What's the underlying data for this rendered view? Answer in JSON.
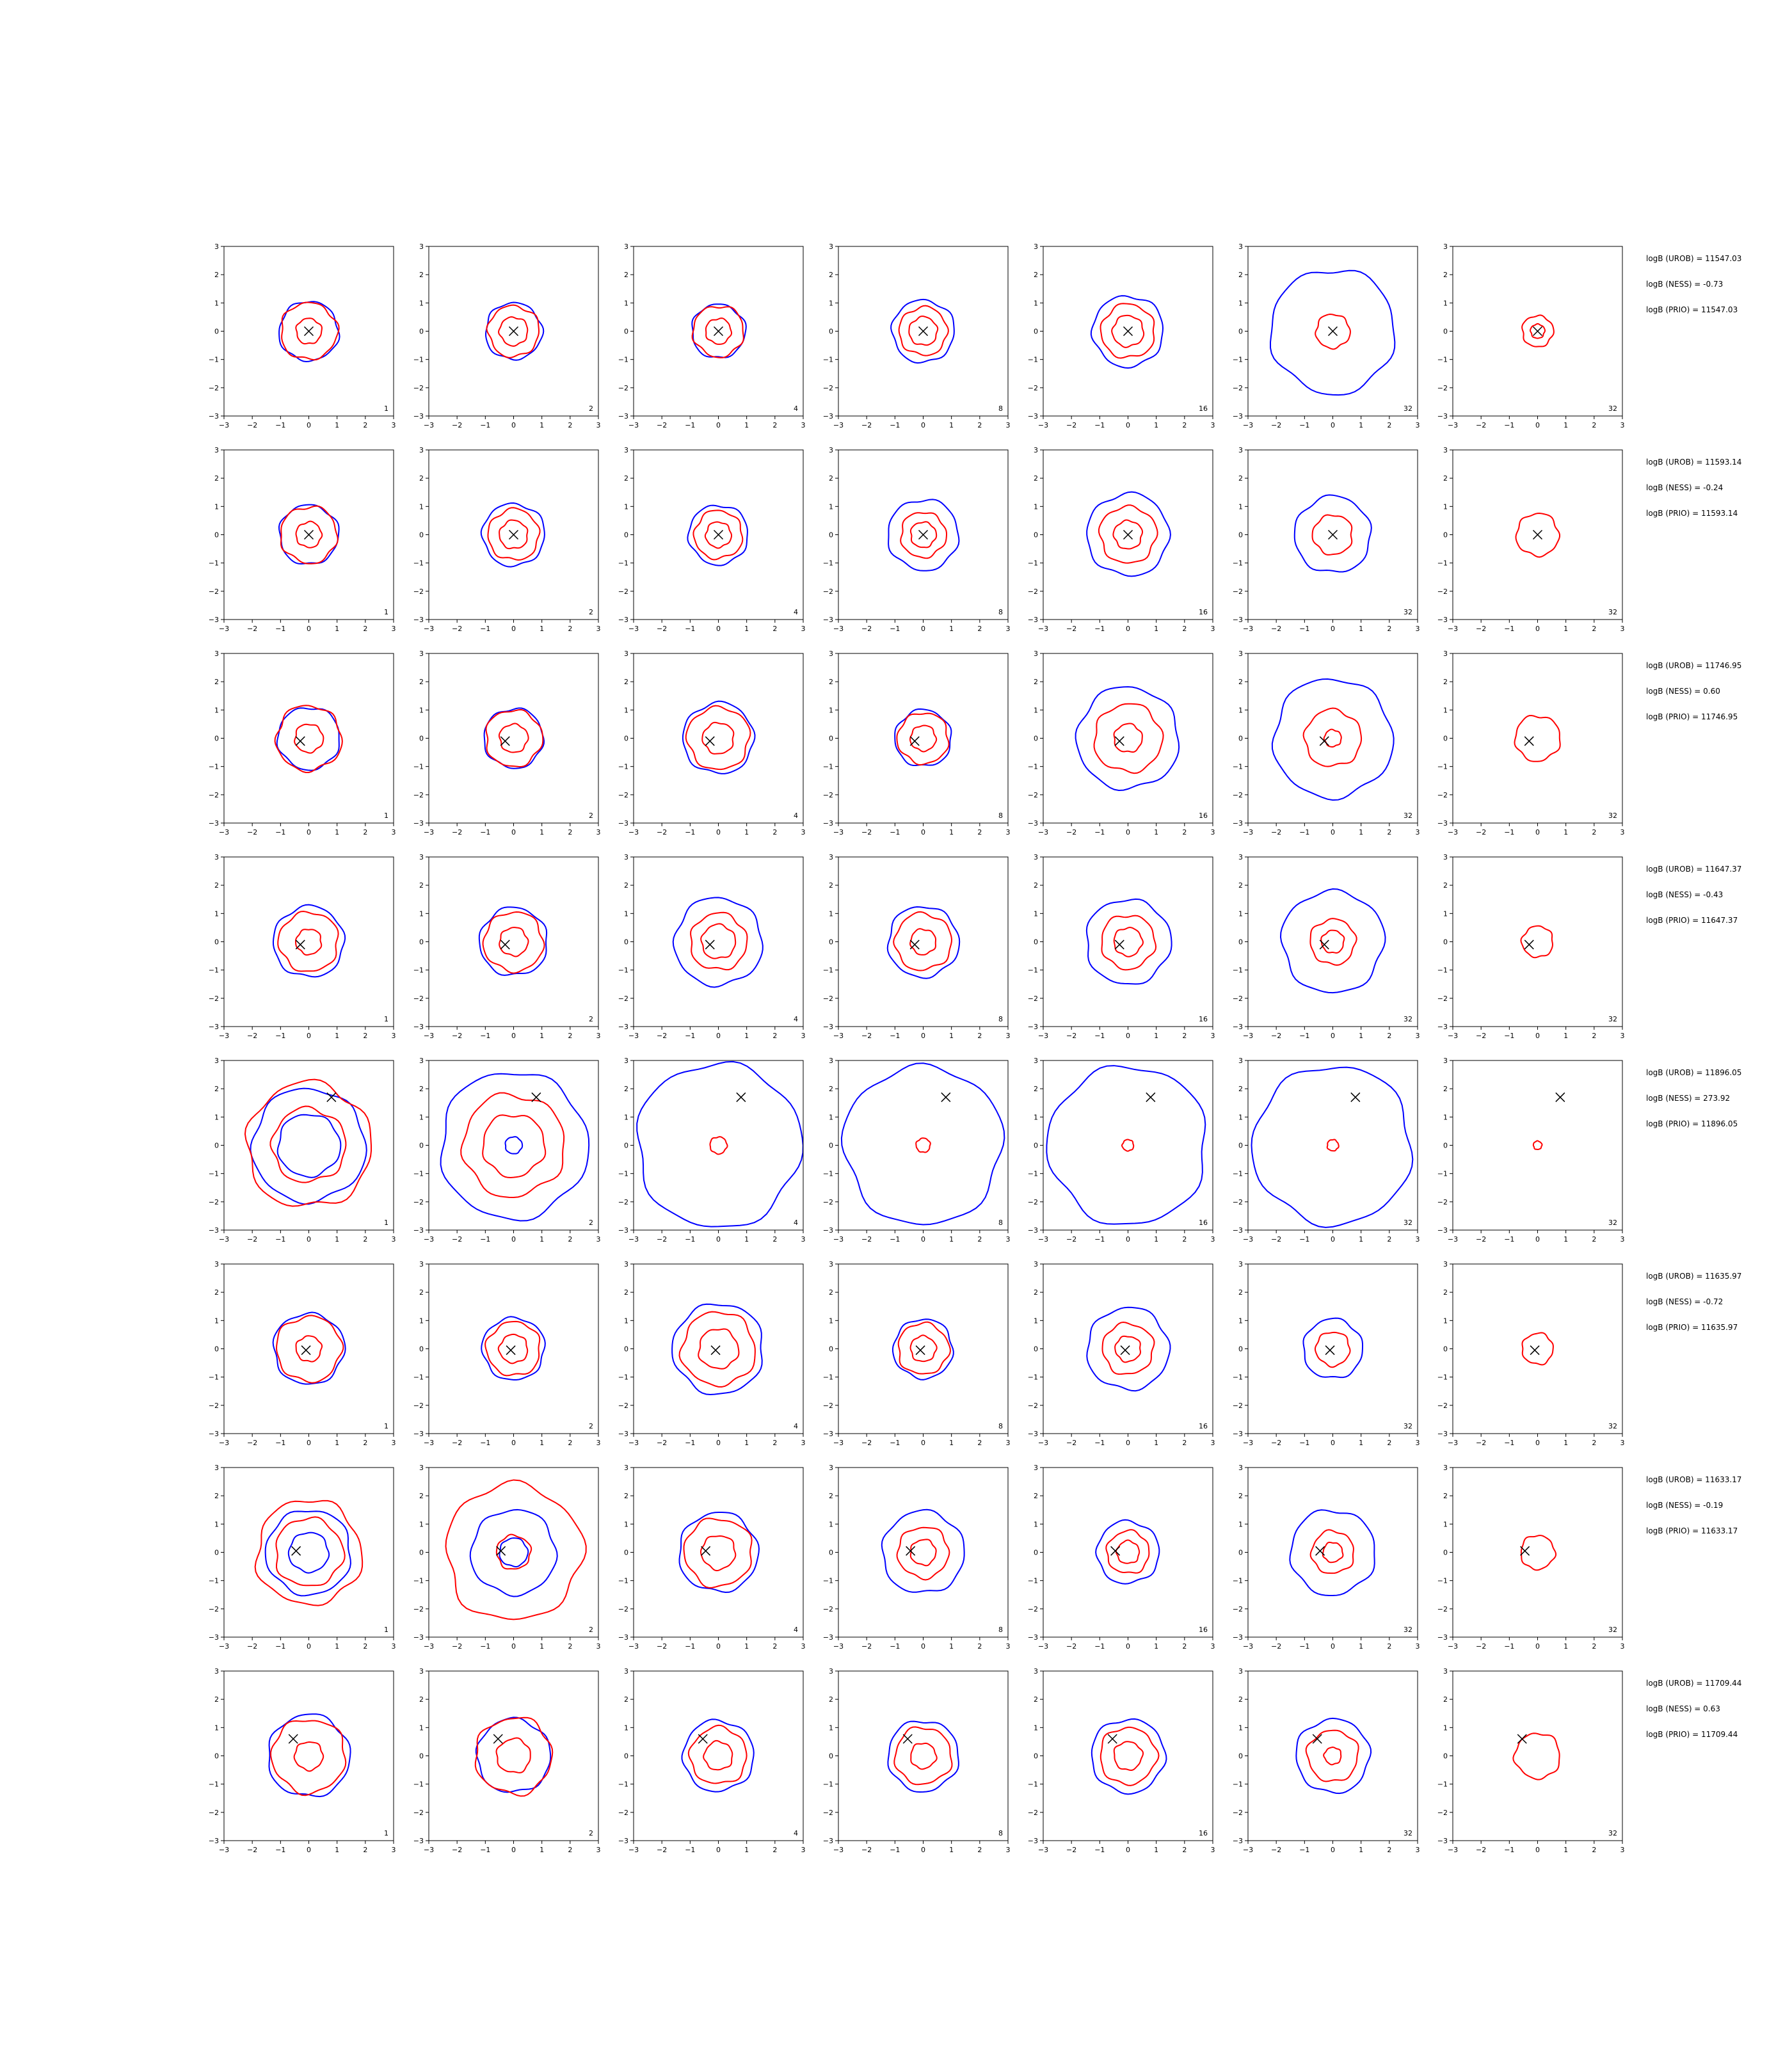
{
  "chart_data": {
    "type": "contour-grid",
    "rows": 8,
    "cols": 7,
    "xlim": [
      -3,
      3
    ],
    "ylim": [
      -3,
      3
    ],
    "ticks": [
      "−3",
      "−2",
      "−1",
      "0",
      "1",
      "2",
      "3"
    ],
    "tick_values": [
      -3,
      -2,
      -1,
      0,
      1,
      2,
      3
    ],
    "panel_labels": [
      "1",
      "2",
      "4",
      "8",
      "16",
      "32",
      "32"
    ],
    "colors": {
      "blue": "#0000ff",
      "red": "#ff0000",
      "marker": "#000000"
    },
    "row_data": [
      {
        "marker": [
          0.0,
          0.0
        ],
        "blue_radii": [
          [
            1.05
          ],
          [
            1.0
          ],
          [
            0.95
          ],
          [
            1.1
          ],
          [
            1.25
          ],
          [
            2.2
          ],
          []
        ],
        "red_radii": [
          [
            1.0,
            0.45
          ],
          [
            0.9,
            0.5
          ],
          [
            0.9,
            0.45
          ],
          [
            0.85,
            0.5
          ],
          [
            0.95,
            0.55
          ],
          [
            0.6
          ],
          [
            0.55,
            0.25
          ]
        ],
        "annotations": [
          "logB (UROB) = 11547.03",
          "logB (NESS) = -0.73",
          "logB (PRIO) = 11547.03"
        ]
      },
      {
        "marker": [
          0.0,
          0.0
        ],
        "blue_radii": [
          [
            1.05
          ],
          [
            1.1
          ],
          [
            1.05
          ],
          [
            1.25
          ],
          [
            1.45
          ],
          [
            1.35
          ],
          []
        ],
        "red_radii": [
          [
            1.0,
            0.45
          ],
          [
            0.9,
            0.5
          ],
          [
            0.85,
            0.45
          ],
          [
            0.8,
            0.45
          ],
          [
            1.0,
            0.5
          ],
          [
            0.7
          ],
          [
            0.75
          ]
        ],
        "annotations": [
          "logB (UROB) = 11593.14",
          "logB (NESS) = -0.24",
          "logB (PRIO) = 11593.14"
        ]
      },
      {
        "marker": [
          -0.3,
          -0.1
        ],
        "blue_radii": [
          [
            1.1
          ],
          [
            1.05
          ],
          [
            1.25
          ],
          [
            1.0
          ],
          [
            1.8
          ],
          [
            2.1
          ],
          []
        ],
        "red_radii": [
          [
            1.15,
            0.5
          ],
          [
            1.0,
            0.5
          ],
          [
            1.1,
            0.55
          ],
          [
            0.9,
            0.45
          ],
          [
            1.2,
            0.5
          ],
          [
            1.0,
            0.3
          ],
          [
            0.8
          ]
        ],
        "annotations": [
          "logB (UROB) = 11746.95",
          "logB (NESS) = 0.60",
          "logB (PRIO) = 11746.95"
        ]
      },
      {
        "marker": [
          -0.3,
          -0.1
        ],
        "blue_radii": [
          [
            1.25
          ],
          [
            1.2
          ],
          [
            1.55
          ],
          [
            1.25
          ],
          [
            1.5
          ],
          [
            1.8
          ],
          []
        ],
        "red_radii": [
          [
            1.05,
            0.45
          ],
          [
            1.05,
            0.5
          ],
          [
            1.0,
            0.6
          ],
          [
            1.0,
            0.45
          ],
          [
            0.95,
            0.5
          ],
          [
            0.8,
            0.4
          ],
          [
            0.55
          ]
        ],
        "annotations": [
          "logB (UROB) = 11647.37",
          "logB (NESS) = -0.43",
          "logB (PRIO) = 11647.37"
        ]
      },
      {
        "marker": [
          0.8,
          1.7
        ],
        "blue_radii": [
          [
            2.0,
            1.1
          ],
          [
            2.6,
            0.3
          ],
          [
            2.9
          ],
          [
            2.8
          ],
          [
            2.8
          ],
          [
            2.8
          ],
          []
        ],
        "red_radii": [
          [
            2.2,
            1.3
          ],
          [
            1.8,
            1.1
          ],
          [
            0.3
          ],
          [
            0.25
          ],
          [
            0.2
          ],
          [
            0.2
          ],
          [
            0.15
          ]
        ],
        "annotations": [
          "logB (UROB) = 11896.05",
          "logB (NESS) = 273.92",
          "logB (PRIO) = 11896.05"
        ]
      },
      {
        "marker": [
          -0.1,
          -0.05
        ],
        "blue_radii": [
          [
            1.25
          ],
          [
            1.1
          ],
          [
            1.6
          ],
          [
            1.05
          ],
          [
            1.45
          ],
          [
            1.05
          ],
          []
        ],
        "red_radii": [
          [
            1.15,
            0.45
          ],
          [
            0.95,
            0.5
          ],
          [
            1.3,
            0.7
          ],
          [
            0.9,
            0.45
          ],
          [
            0.9,
            0.45
          ],
          [
            0.6
          ],
          [
            0.55
          ]
        ],
        "annotations": [
          "logB (UROB) = 11635.97",
          "logB (NESS) = -0.72",
          "logB (PRIO) = 11635.97"
        ]
      },
      {
        "marker": [
          -0.45,
          0.05
        ],
        "blue_radii": [
          [
            1.5,
            0.7
          ],
          [
            1.5,
            0.5
          ],
          [
            1.4
          ],
          [
            1.45
          ],
          [
            1.1
          ],
          [
            1.5
          ],
          []
        ],
        "red_radii": [
          [
            1.85,
            1.2
          ],
          [
            2.4,
            0.6
          ],
          [
            1.2,
            0.6
          ],
          [
            0.9,
            0.45
          ],
          [
            0.75,
            0.4
          ],
          [
            0.75,
            0.35
          ],
          [
            0.6
          ]
        ],
        "annotations": [
          "logB (UROB) = 11633.17",
          "logB (NESS) = -0.19",
          "logB (PRIO) = 11633.17"
        ]
      },
      {
        "marker": [
          -0.55,
          0.6
        ],
        "blue_radii": [
          [
            1.45
          ],
          [
            1.3
          ],
          [
            1.25
          ],
          [
            1.25
          ],
          [
            1.3
          ],
          [
            1.3
          ],
          []
        ],
        "red_radii": [
          [
            1.3,
            0.5
          ],
          [
            1.35,
            0.6
          ],
          [
            1.0,
            0.5
          ],
          [
            1.0,
            0.45
          ],
          [
            1.0,
            0.5
          ],
          [
            0.9,
            0.3
          ],
          [
            0.8
          ]
        ],
        "annotations": [
          "logB (UROB) = 11709.44",
          "logB (NESS) = 0.63",
          "logB (PRIO) = 11709.44"
        ]
      }
    ]
  }
}
